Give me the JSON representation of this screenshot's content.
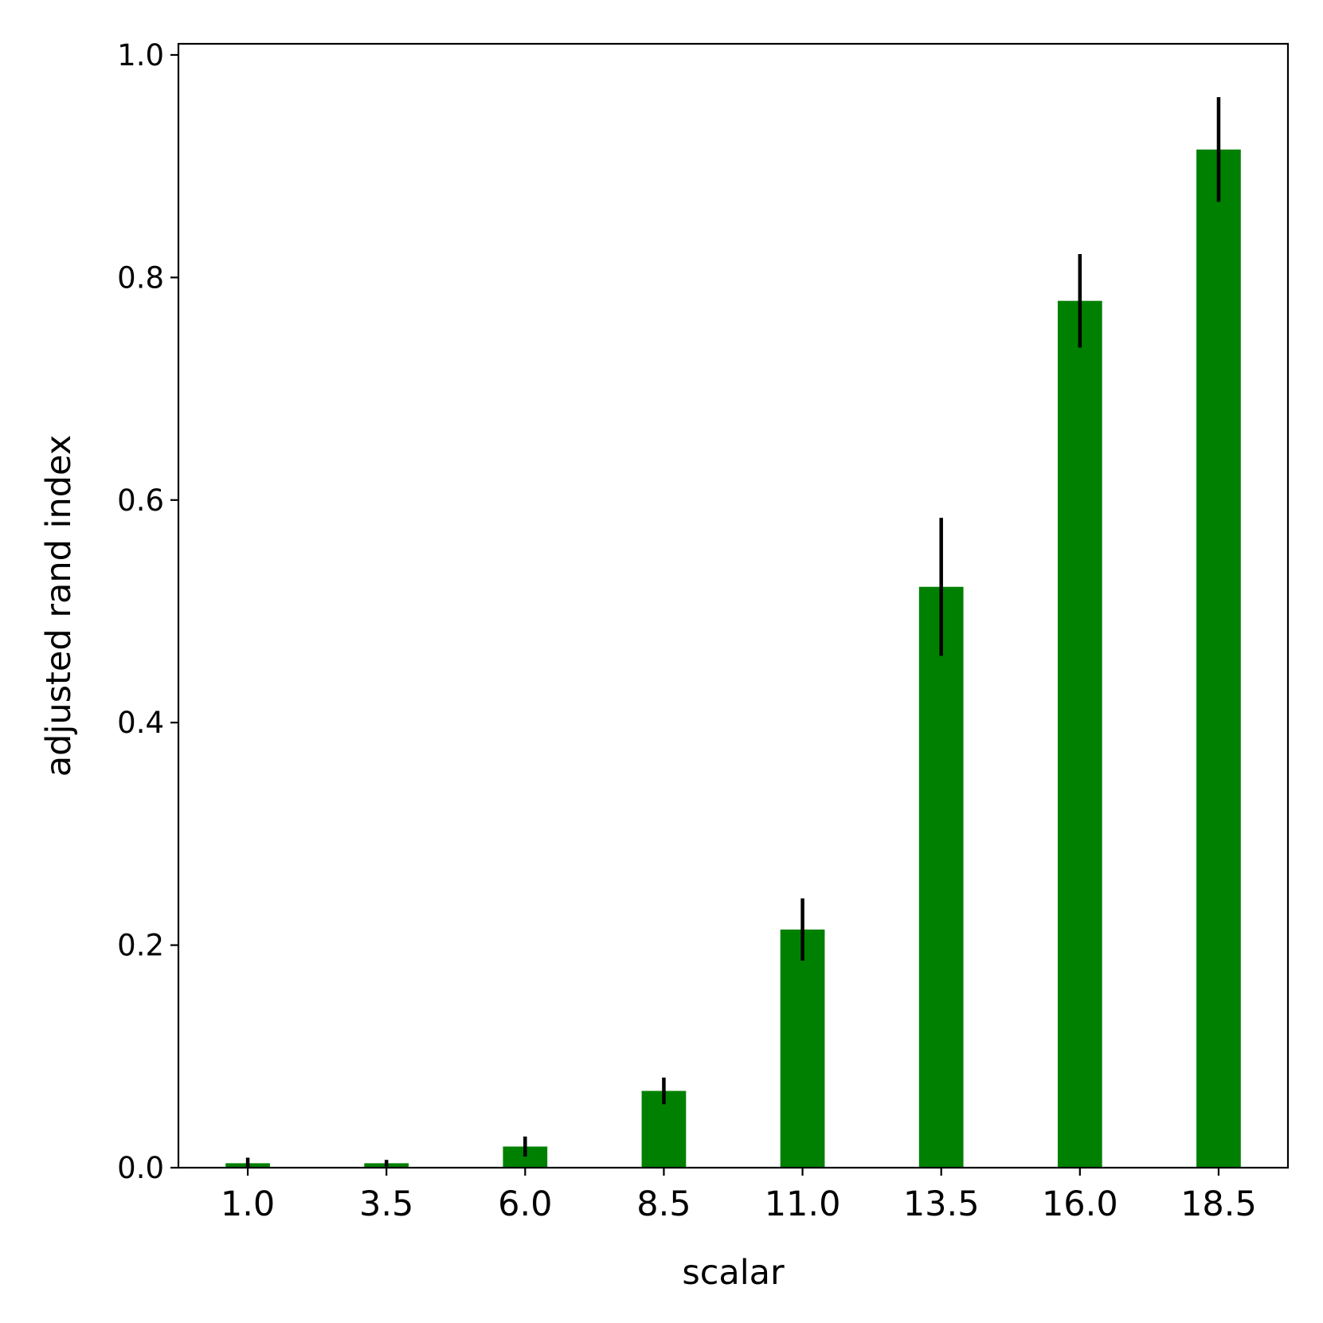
{
  "chart_data": {
    "type": "bar",
    "title": "",
    "xlabel": "scalar",
    "ylabel": "adjusted rand index",
    "categories": [
      "1.0",
      "3.5",
      "6.0",
      "8.5",
      "11.0",
      "13.5",
      "16.0",
      "18.5"
    ],
    "series": [
      {
        "values": [
          0.004,
          0.004,
          0.019,
          0.069,
          0.214,
          0.522,
          0.779,
          0.915
        ],
        "error": [
          0.005,
          0.003,
          0.009,
          0.012,
          0.028,
          0.062,
          0.042,
          0.047
        ],
        "color": "#008000"
      }
    ],
    "yticks": [
      "0.0",
      "0.2",
      "0.4",
      "0.6",
      "0.8",
      "1.0"
    ],
    "ylim": [
      0,
      1.01
    ],
    "grid": false,
    "legend": "none",
    "error_bar_color": "#000000"
  }
}
